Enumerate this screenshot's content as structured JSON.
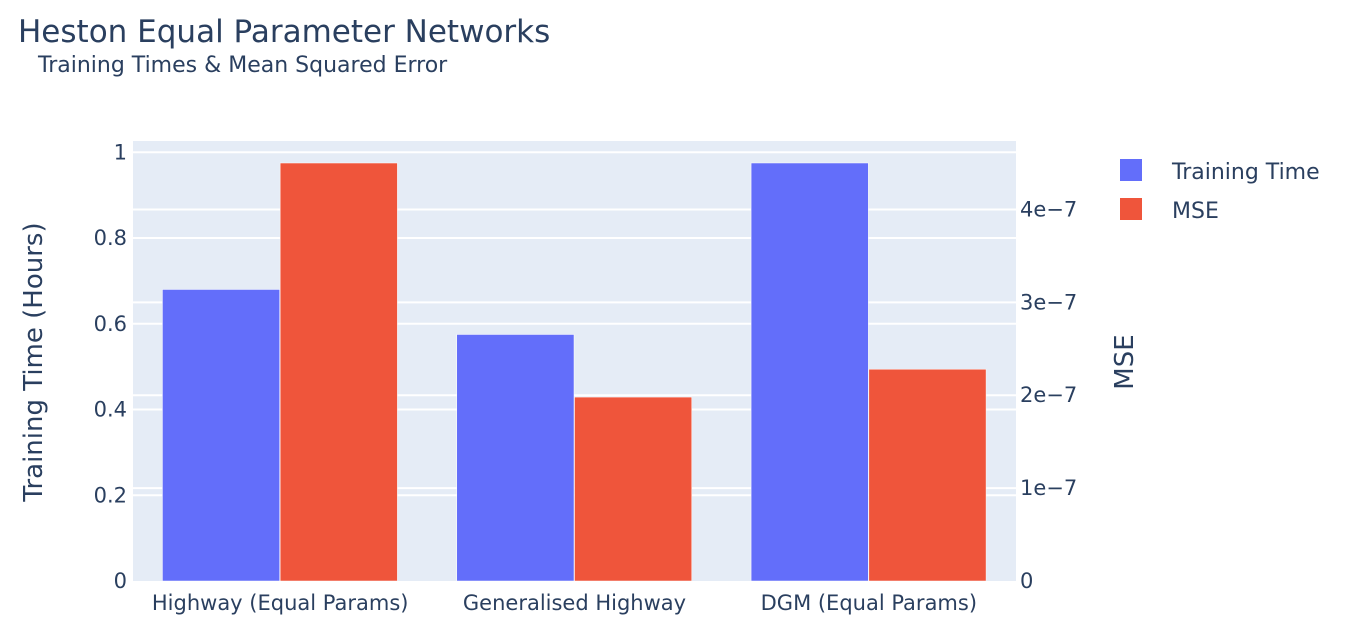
{
  "chart_data": {
    "type": "bar",
    "title": "Heston Equal Parameter Networks",
    "subtitle": "Training Times & Mean Squared Error",
    "categories": [
      "Highway (Equal Params)",
      "Generalised Highway",
      "DGM (Equal Params)"
    ],
    "series": [
      {
        "name": "Training Time",
        "axis": "left",
        "color": "#636efa",
        "values": [
          0.68,
          0.575,
          0.975
        ]
      },
      {
        "name": "MSE",
        "axis": "right",
        "color": "#ef553b",
        "values": [
          4.5e-07,
          1.98e-07,
          2.28e-07
        ]
      }
    ],
    "left_axis": {
      "label": "Training Time (Hours)",
      "range": [
        0,
        1.0263
      ],
      "ticks": [
        0,
        0.2,
        0.4,
        0.6,
        0.8,
        1
      ],
      "tick_labels": [
        "0",
        "0.2",
        "0.4",
        "0.6",
        "0.8",
        "1"
      ]
    },
    "right_axis": {
      "label": "MSE",
      "range": [
        0,
        4.737e-07
      ],
      "ticks": [
        0,
        1e-07,
        2e-07,
        3e-07,
        4e-07
      ],
      "tick_labels": [
        "0",
        "1e−7",
        "2e−7",
        "3e−7",
        "4e−7"
      ]
    },
    "grid": true,
    "legend_position": "top-right",
    "plot_background": "#e5ecf6"
  }
}
